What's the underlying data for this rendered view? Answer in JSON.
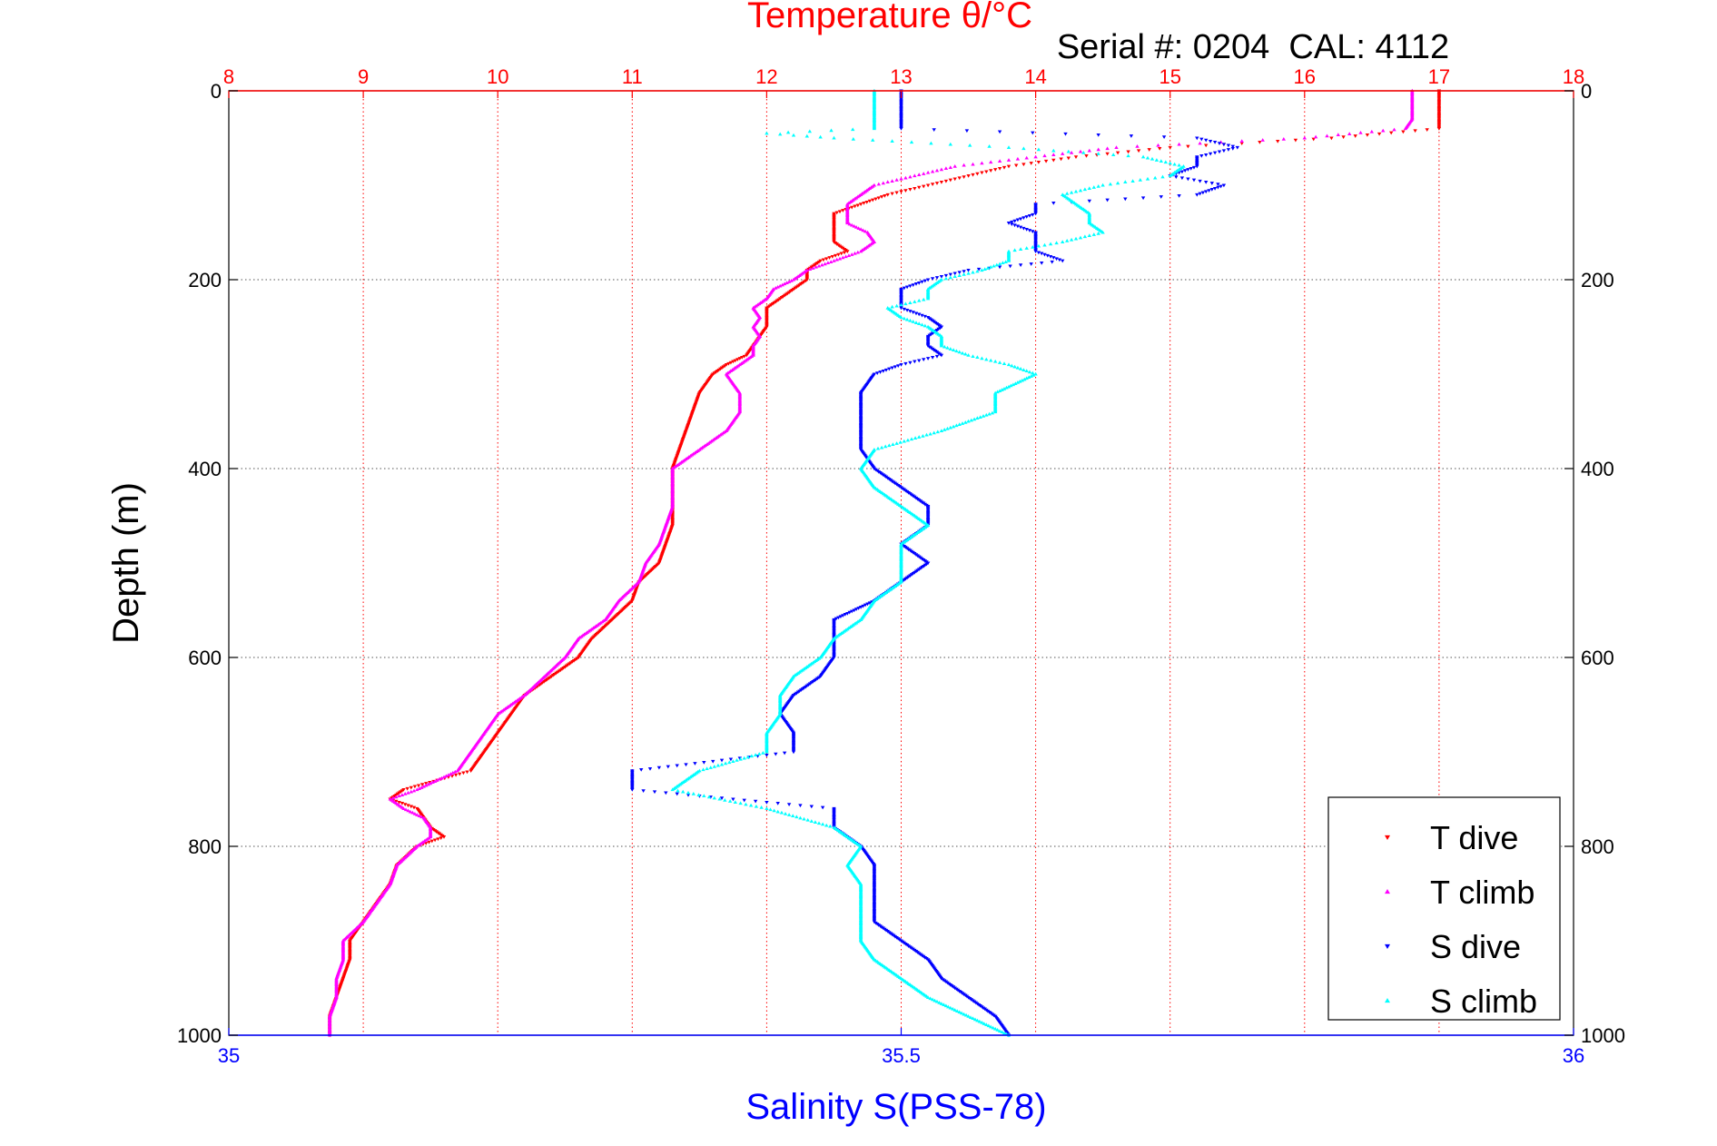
{
  "chart_data": {
    "type": "scatter",
    "title": "Temperature θ/°C",
    "annotation": "Serial #: 0204  CAL: 4112",
    "ylabel": "Depth (m)",
    "xlabel": "Salinity S(PSS-78)",
    "ylim": [
      0,
      1000
    ],
    "y_reversed": true,
    "y_ticks": [
      "0",
      "200",
      "400",
      "600",
      "800",
      "1000"
    ],
    "x_top": {
      "quantity": "temperature",
      "lim": [
        8,
        18
      ],
      "ticks": [
        "8",
        "9",
        "10",
        "11",
        "12",
        "13",
        "14",
        "15",
        "16",
        "17",
        "18"
      ],
      "color": "#ff0000"
    },
    "x_bottom": {
      "quantity": "salinity",
      "lim": [
        35,
        36
      ],
      "ticks": [
        "35",
        "35.5",
        "36"
      ],
      "color": "#0000ff"
    },
    "grid": true,
    "legend_position": "bottom-right",
    "series": [
      {
        "name": "T dive",
        "axis": "temperature",
        "marker": "triangle-down",
        "color": "#ff0000",
        "depth": [
          0,
          20,
          40,
          50,
          60,
          70,
          80,
          90,
          100,
          110,
          120,
          130,
          140,
          150,
          160,
          170,
          180,
          190,
          200,
          210,
          220,
          230,
          240,
          250,
          260,
          270,
          280,
          290,
          300,
          320,
          340,
          360,
          380,
          400,
          420,
          440,
          460,
          480,
          500,
          520,
          540,
          560,
          580,
          600,
          620,
          640,
          660,
          680,
          700,
          720,
          740,
          750,
          760,
          780,
          790,
          800,
          820,
          840,
          860,
          880,
          900,
          920,
          940,
          960,
          980,
          1000
        ],
        "value": [
          17.0,
          17.0,
          17.0,
          16.2,
          15.0,
          14.3,
          13.8,
          13.5,
          13.2,
          12.9,
          12.7,
          12.5,
          12.5,
          12.5,
          12.5,
          12.6,
          12.4,
          12.3,
          12.3,
          12.2,
          12.1,
          12.0,
          12.0,
          12.0,
          11.95,
          11.9,
          11.85,
          11.7,
          11.6,
          11.5,
          11.45,
          11.4,
          11.35,
          11.3,
          11.3,
          11.3,
          11.3,
          11.25,
          11.2,
          11.05,
          11.0,
          10.85,
          10.7,
          10.6,
          10.4,
          10.2,
          10.1,
          10.0,
          9.9,
          9.8,
          9.3,
          9.2,
          9.4,
          9.5,
          9.6,
          9.4,
          9.25,
          9.2,
          9.1,
          9.0,
          8.9,
          8.9,
          8.85,
          8.8,
          8.75,
          8.75
        ]
      },
      {
        "name": "T climb",
        "axis": "temperature",
        "marker": "triangle-up",
        "color": "#ff00ff",
        "depth": [
          0,
          10,
          20,
          30,
          40,
          50,
          60,
          70,
          80,
          90,
          100,
          110,
          120,
          130,
          140,
          150,
          160,
          170,
          180,
          190,
          200,
          210,
          220,
          230,
          240,
          250,
          260,
          270,
          280,
          290,
          300,
          320,
          340,
          360,
          380,
          400,
          420,
          440,
          460,
          480,
          500,
          520,
          540,
          560,
          580,
          600,
          620,
          640,
          660,
          680,
          700,
          720,
          740,
          750,
          760,
          770,
          780,
          790,
          800,
          820,
          840,
          860,
          880,
          900,
          920,
          940,
          960,
          980,
          1000
        ],
        "value": [
          16.8,
          16.8,
          16.8,
          16.8,
          16.75,
          16.0,
          14.6,
          14.0,
          13.4,
          13.1,
          12.8,
          12.7,
          12.6,
          12.6,
          12.6,
          12.75,
          12.8,
          12.7,
          12.5,
          12.3,
          12.2,
          12.05,
          12.0,
          11.9,
          11.95,
          11.9,
          11.95,
          11.9,
          11.9,
          11.8,
          11.7,
          11.8,
          11.8,
          11.7,
          11.5,
          11.3,
          11.3,
          11.3,
          11.25,
          11.2,
          11.1,
          11.05,
          10.9,
          10.8,
          10.6,
          10.5,
          10.35,
          10.2,
          10.0,
          9.9,
          9.8,
          9.7,
          9.4,
          9.2,
          9.3,
          9.45,
          9.5,
          9.5,
          9.4,
          9.25,
          9.2,
          9.1,
          9.0,
          8.85,
          8.85,
          8.8,
          8.8,
          8.75,
          8.75
        ]
      },
      {
        "name": "S dive",
        "axis": "salinity",
        "marker": "triangle-down",
        "color": "#0000ff",
        "depth": [
          0,
          20,
          40,
          50,
          60,
          70,
          80,
          90,
          100,
          110,
          120,
          130,
          140,
          150,
          160,
          170,
          180,
          190,
          200,
          210,
          220,
          230,
          240,
          250,
          260,
          270,
          280,
          290,
          300,
          320,
          340,
          360,
          380,
          400,
          420,
          440,
          460,
          480,
          500,
          520,
          540,
          560,
          580,
          600,
          620,
          640,
          660,
          680,
          700,
          720,
          740,
          760,
          780,
          800,
          820,
          840,
          860,
          880,
          900,
          920,
          940,
          960,
          980,
          1000
        ],
        "value": [
          35.5,
          35.5,
          35.5,
          35.72,
          35.75,
          35.72,
          35.72,
          35.7,
          35.74,
          35.72,
          35.6,
          35.6,
          35.58,
          35.6,
          35.6,
          35.6,
          35.62,
          35.55,
          35.52,
          35.5,
          35.5,
          35.5,
          35.52,
          35.53,
          35.52,
          35.52,
          35.53,
          35.5,
          35.48,
          35.47,
          35.47,
          35.47,
          35.47,
          35.48,
          35.5,
          35.52,
          35.52,
          35.5,
          35.52,
          35.5,
          35.48,
          35.45,
          35.45,
          35.45,
          35.44,
          35.42,
          35.41,
          35.42,
          35.42,
          35.3,
          35.3,
          35.45,
          35.45,
          35.47,
          35.48,
          35.48,
          35.48,
          35.48,
          35.5,
          35.52,
          35.53,
          35.55,
          35.57,
          35.58
        ]
      },
      {
        "name": "S climb",
        "axis": "salinity",
        "marker": "triangle-up",
        "color": "#00ffff",
        "depth": [
          0,
          10,
          20,
          30,
          40,
          45,
          50,
          60,
          70,
          80,
          90,
          100,
          110,
          120,
          130,
          140,
          150,
          160,
          170,
          180,
          190,
          200,
          210,
          220,
          230,
          240,
          250,
          260,
          270,
          280,
          290,
          300,
          320,
          340,
          360,
          380,
          400,
          420,
          440,
          460,
          480,
          500,
          520,
          540,
          560,
          580,
          600,
          620,
          640,
          660,
          680,
          700,
          720,
          740,
          760,
          780,
          800,
          820,
          840,
          860,
          880,
          900,
          920,
          940,
          960,
          980,
          1000
        ],
        "value": [
          35.48,
          35.48,
          35.48,
          35.48,
          35.48,
          35.4,
          35.45,
          35.58,
          35.68,
          35.71,
          35.7,
          35.65,
          35.62,
          35.63,
          35.64,
          35.64,
          35.65,
          35.62,
          35.58,
          35.58,
          35.56,
          35.53,
          35.52,
          35.52,
          35.49,
          35.5,
          35.52,
          35.53,
          35.53,
          35.55,
          35.58,
          35.6,
          35.57,
          35.57,
          35.53,
          35.48,
          35.47,
          35.48,
          35.5,
          35.52,
          35.5,
          35.5,
          35.5,
          35.48,
          35.47,
          35.45,
          35.44,
          35.42,
          35.41,
          35.41,
          35.4,
          35.4,
          35.35,
          35.33,
          35.4,
          35.45,
          35.47,
          35.46,
          35.47,
          35.47,
          35.47,
          35.47,
          35.48,
          35.5,
          35.52,
          35.55,
          35.58
        ]
      }
    ]
  }
}
